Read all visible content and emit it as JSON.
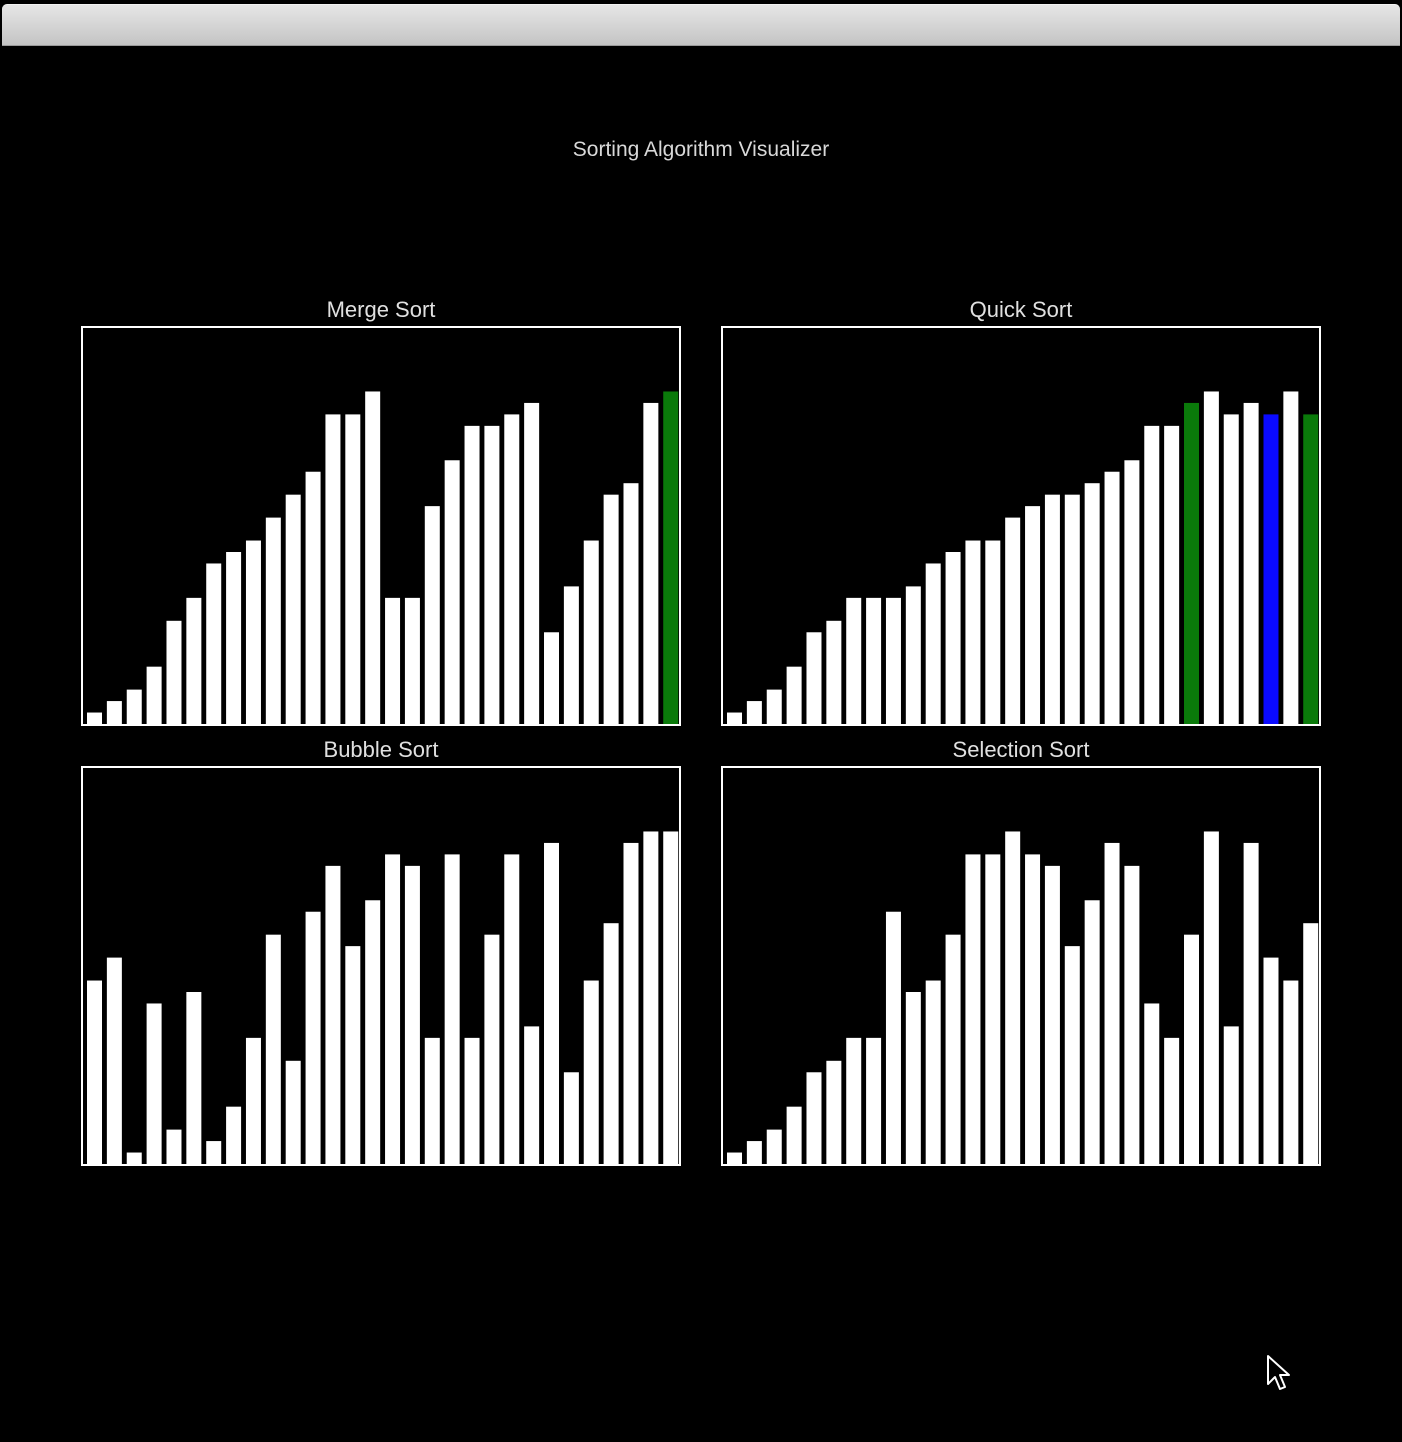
{
  "window": {
    "title": "Sorting Algorithm Visualizer"
  },
  "colors": {
    "background": "#000000",
    "bar_default": "#ffffff",
    "bar_highlight_green": "#0a7a0a",
    "bar_highlight_blue": "#0a0aff"
  },
  "icons": {
    "cursor": "arrow-cursor-icon"
  },
  "chart_data": [
    {
      "type": "bar",
      "title": "Merge Sort",
      "ylim": [
        0,
        30
      ],
      "values": [
        1,
        2,
        3,
        5,
        9,
        11,
        14,
        15,
        16,
        18,
        20,
        22,
        27,
        27,
        29,
        11,
        11,
        19,
        23,
        26,
        26,
        27,
        28,
        8,
        12,
        16,
        20,
        21,
        28,
        29
      ],
      "bar_colors": [
        "#ffffff",
        "#ffffff",
        "#ffffff",
        "#ffffff",
        "#ffffff",
        "#ffffff",
        "#ffffff",
        "#ffffff",
        "#ffffff",
        "#ffffff",
        "#ffffff",
        "#ffffff",
        "#ffffff",
        "#ffffff",
        "#ffffff",
        "#ffffff",
        "#ffffff",
        "#ffffff",
        "#ffffff",
        "#ffffff",
        "#ffffff",
        "#ffffff",
        "#ffffff",
        "#ffffff",
        "#ffffff",
        "#ffffff",
        "#ffffff",
        "#ffffff",
        "#ffffff",
        "#0a7a0a"
      ]
    },
    {
      "type": "bar",
      "title": "Quick Sort",
      "ylim": [
        0,
        30
      ],
      "values": [
        1,
        2,
        3,
        5,
        8,
        9,
        11,
        11,
        11,
        12,
        14,
        15,
        16,
        16,
        18,
        19,
        20,
        20,
        21,
        22,
        23,
        26,
        26,
        28,
        29,
        27,
        28,
        27,
        29,
        27
      ],
      "bar_colors": [
        "#ffffff",
        "#ffffff",
        "#ffffff",
        "#ffffff",
        "#ffffff",
        "#ffffff",
        "#ffffff",
        "#ffffff",
        "#ffffff",
        "#ffffff",
        "#ffffff",
        "#ffffff",
        "#ffffff",
        "#ffffff",
        "#ffffff",
        "#ffffff",
        "#ffffff",
        "#ffffff",
        "#ffffff",
        "#ffffff",
        "#ffffff",
        "#ffffff",
        "#ffffff",
        "#0a7a0a",
        "#ffffff",
        "#ffffff",
        "#ffffff",
        "#0a0aff",
        "#ffffff",
        "#0a7a0a"
      ]
    },
    {
      "type": "bar",
      "title": "Bubble Sort",
      "ylim": [
        0,
        30
      ],
      "values": [
        16,
        18,
        1,
        14,
        3,
        15,
        2,
        5,
        11,
        20,
        9,
        22,
        26,
        19,
        23,
        27,
        26,
        11,
        27,
        11,
        20,
        27,
        12,
        28,
        8,
        16,
        21,
        28,
        29,
        29
      ],
      "bar_colors": [
        "#ffffff",
        "#ffffff",
        "#ffffff",
        "#ffffff",
        "#ffffff",
        "#ffffff",
        "#ffffff",
        "#ffffff",
        "#ffffff",
        "#ffffff",
        "#ffffff",
        "#ffffff",
        "#ffffff",
        "#ffffff",
        "#ffffff",
        "#ffffff",
        "#ffffff",
        "#ffffff",
        "#ffffff",
        "#ffffff",
        "#ffffff",
        "#ffffff",
        "#ffffff",
        "#ffffff",
        "#ffffff",
        "#ffffff",
        "#ffffff",
        "#ffffff",
        "#ffffff",
        "#ffffff"
      ]
    },
    {
      "type": "bar",
      "title": "Selection Sort",
      "ylim": [
        0,
        30
      ],
      "values": [
        1,
        2,
        3,
        5,
        8,
        9,
        11,
        11,
        22,
        15,
        16,
        20,
        27,
        27,
        29,
        27,
        26,
        19,
        23,
        28,
        26,
        14,
        11,
        20,
        29,
        12,
        28,
        18,
        16,
        21
      ],
      "bar_colors": [
        "#ffffff",
        "#ffffff",
        "#ffffff",
        "#ffffff",
        "#ffffff",
        "#ffffff",
        "#ffffff",
        "#ffffff",
        "#ffffff",
        "#ffffff",
        "#ffffff",
        "#ffffff",
        "#ffffff",
        "#ffffff",
        "#ffffff",
        "#ffffff",
        "#ffffff",
        "#ffffff",
        "#ffffff",
        "#ffffff",
        "#ffffff",
        "#ffffff",
        "#ffffff",
        "#ffffff",
        "#ffffff",
        "#ffffff",
        "#ffffff",
        "#ffffff",
        "#ffffff",
        "#ffffff"
      ]
    }
  ]
}
